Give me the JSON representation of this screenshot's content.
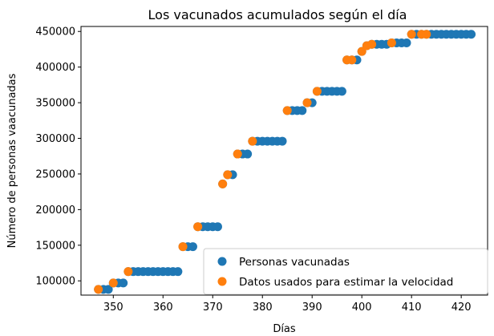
{
  "chart_data": {
    "type": "scatter",
    "title": "Los vacunados acumulados según el día",
    "xlabel": "Días",
    "ylabel": "Número de personas vaacunadas",
    "xlim": [
      343.5,
      425.3
    ],
    "ylim": [
      80000,
      457000
    ],
    "xticks": [
      350,
      360,
      370,
      380,
      390,
      400,
      410,
      420
    ],
    "yticks": [
      100000,
      150000,
      200000,
      250000,
      300000,
      350000,
      400000,
      450000
    ],
    "xtick_labels": [
      "350",
      "360",
      "370",
      "380",
      "390",
      "400",
      "410",
      "420"
    ],
    "ytick_labels": [
      "100000",
      "150000",
      "200000",
      "250000",
      "300000",
      "350000",
      "400000",
      "450000"
    ],
    "grid": false,
    "legend_position": "lower-right",
    "series": [
      {
        "name": "Personas vacunadas",
        "color": "#1f77b4",
        "points": [
          [
            347,
            88000
          ],
          [
            348,
            88000
          ],
          [
            349,
            88000
          ],
          [
            350,
            97000
          ],
          [
            351,
            97000
          ],
          [
            352,
            97000
          ],
          [
            353,
            113000
          ],
          [
            354,
            113000
          ],
          [
            355,
            113000
          ],
          [
            356,
            113000
          ],
          [
            357,
            113000
          ],
          [
            358,
            113000
          ],
          [
            359,
            113000
          ],
          [
            360,
            113000
          ],
          [
            361,
            113000
          ],
          [
            362,
            113000
          ],
          [
            363,
            113000
          ],
          [
            364,
            148000
          ],
          [
            365,
            148000
          ],
          [
            366,
            148000
          ],
          [
            367,
            176000
          ],
          [
            368,
            176000
          ],
          [
            369,
            176000
          ],
          [
            370,
            176000
          ],
          [
            371,
            176000
          ],
          [
            372,
            236000
          ],
          [
            373,
            249000
          ],
          [
            374,
            249000
          ],
          [
            375,
            278000
          ],
          [
            376,
            278000
          ],
          [
            377,
            278000
          ],
          [
            378,
            296000
          ],
          [
            379,
            296000
          ],
          [
            380,
            296000
          ],
          [
            381,
            296000
          ],
          [
            382,
            296000
          ],
          [
            383,
            296000
          ],
          [
            384,
            296000
          ],
          [
            385,
            339000
          ],
          [
            386,
            339000
          ],
          [
            387,
            339000
          ],
          [
            388,
            339000
          ],
          [
            389,
            350000
          ],
          [
            390,
            350000
          ],
          [
            391,
            366000
          ],
          [
            392,
            366000
          ],
          [
            393,
            366000
          ],
          [
            394,
            366000
          ],
          [
            395,
            366000
          ],
          [
            396,
            366000
          ],
          [
            397,
            410000
          ],
          [
            398,
            410000
          ],
          [
            399,
            410000
          ],
          [
            400,
            422000
          ],
          [
            401,
            430000
          ],
          [
            402,
            432000
          ],
          [
            403,
            432000
          ],
          [
            404,
            432000
          ],
          [
            405,
            432000
          ],
          [
            406,
            434000
          ],
          [
            407,
            434000
          ],
          [
            408,
            434000
          ],
          [
            409,
            434000
          ],
          [
            410,
            446000
          ],
          [
            411,
            446000
          ],
          [
            412,
            446000
          ],
          [
            413,
            446000
          ],
          [
            414,
            446000
          ],
          [
            415,
            446000
          ],
          [
            416,
            446000
          ],
          [
            417,
            446000
          ],
          [
            418,
            446000
          ],
          [
            419,
            446000
          ],
          [
            420,
            446000
          ],
          [
            421,
            446000
          ],
          [
            422,
            446000
          ]
        ]
      },
      {
        "name": "Datos usados para estimar la velocidad",
        "color": "#ff7f0e",
        "points": [
          [
            347,
            88000
          ],
          [
            350,
            97000
          ],
          [
            353,
            113000
          ],
          [
            364,
            148000
          ],
          [
            367,
            176000
          ],
          [
            372,
            236000
          ],
          [
            373,
            249000
          ],
          [
            375,
            278000
          ],
          [
            378,
            296000
          ],
          [
            385,
            339000
          ],
          [
            389,
            350000
          ],
          [
            391,
            366000
          ],
          [
            397,
            410000
          ],
          [
            398,
            410000
          ],
          [
            400,
            422000
          ],
          [
            401,
            430000
          ],
          [
            402,
            432000
          ],
          [
            406,
            434000
          ],
          [
            410,
            446000
          ],
          [
            412,
            446000
          ],
          [
            413,
            446000
          ]
        ]
      }
    ]
  }
}
